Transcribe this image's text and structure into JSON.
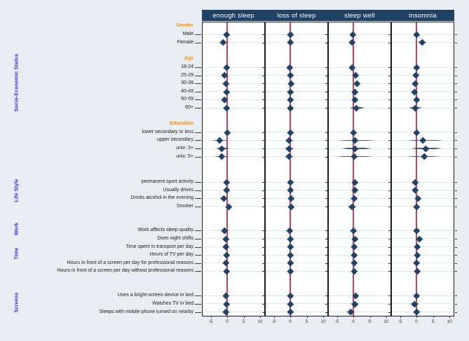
{
  "chart_data": {
    "type": "scatter",
    "subtype": "coefficient-forest-plot",
    "colors": {
      "background": "#e9eef4",
      "panel_bg": "#ffffff",
      "panel_border": "#1b1b1b",
      "header_bg": "#1e4164",
      "header_text": "#ffffff",
      "marker_navy": "#1f4469",
      "zero_line_red": "#c8405c",
      "gridline": "#dce8f2",
      "group_header_orange": "#ff8c00",
      "side_label_blue": "#2626e0",
      "tick_text": "#333333"
    },
    "side_labels": [
      "Socio-Economic Status",
      "Life Style",
      "Work",
      "Time",
      "Screens"
    ],
    "groups": [
      {
        "header": "Gender",
        "items": [
          "Male",
          "Female"
        ]
      },
      {
        "header": "Age",
        "items": [
          "18-24",
          "25-29",
          "30-39",
          "40-49",
          "50-59",
          "60+"
        ]
      },
      {
        "header": "Education",
        "items": [
          "lower secondary or less",
          "upper secondary",
          "univ: 3+",
          "univ: 5+"
        ]
      },
      {
        "header": null,
        "items": [
          "permanent sport activity",
          "Usually drives",
          "Drinks alcohol in the evening",
          "Smoker"
        ]
      },
      {
        "header": null,
        "items": [
          "Work affects sleep quality",
          "Does night shifts",
          "Time spent in transport per day",
          "Hours of TV per day",
          "Hours in front of a screen per day for professional reasons",
          "Hours in front of a screen per day without professional reasons"
        ]
      },
      {
        "header": null,
        "items": [
          "Uses a bright-screen-device in bed",
          "Watches TV in bed",
          "Sleeps with mobile phone turned on nearby"
        ]
      }
    ],
    "x_axis": {
      "ticks": [
        -5,
        0,
        5,
        10
      ],
      "tick_labels": [
        "-5",
        "0",
        "5",
        "10"
      ],
      "range": [
        -7.4,
        11.5
      ],
      "zero_reference_line": 0
    },
    "panels": [
      {
        "title": "enough sleep",
        "values": [
          -0.2,
          -1.3,
          -0.2,
          -0.8,
          -0.4,
          -0.2,
          -0.8,
          -0.2,
          0.1,
          -2.2,
          -1.6,
          -1.6,
          -0.1,
          -0.2,
          -1.0,
          0.5,
          -0.7,
          -0.3,
          -0.3,
          -0.1,
          -0.3,
          -0.1,
          -0.4,
          -0.1,
          -0.4
        ],
        "ci": {
          "1": [
            -2.6,
            0.1
          ],
          "7": [
            -1.3,
            0.9
          ],
          "9": [
            -4.6,
            0.3
          ],
          "10": [
            -3.5,
            0.4
          ],
          "11": [
            -3.8,
            0.6
          ],
          "14": [
            -2.2,
            0.2
          ],
          "16": [
            -2.0,
            0.6
          ],
          "24": [
            -1.6,
            0.8
          ]
        }
      },
      {
        "title": "loss of sleep",
        "values": [
          0.0,
          0.1,
          -0.1,
          0.1,
          0.3,
          0.1,
          0.1,
          0.1,
          0.0,
          -0.3,
          -0.3,
          -0.4,
          0.1,
          0.1,
          0.2,
          0.2,
          -0.1,
          0.1,
          0.1,
          0.1,
          0.1,
          0.1,
          0.0,
          0.1,
          0.1
        ],
        "ci": {
          "7": [
            -0.9,
            1.1
          ],
          "9": [
            -1.7,
            1.1
          ],
          "10": [
            -1.6,
            1.0
          ],
          "11": [
            -1.9,
            1.1
          ]
        }
      },
      {
        "title": "sleep well",
        "values": [
          -0.1,
          -0.3,
          -0.3,
          0.8,
          1.1,
          0.5,
          0.5,
          1.0,
          0.0,
          0.5,
          0.5,
          0.3,
          0.5,
          0.5,
          0.2,
          -0.4,
          0.0,
          0.4,
          0.2,
          0.2,
          0.3,
          0.3,
          0.6,
          0.4,
          -0.8
        ],
        "ci": {
          "7": [
            -1.1,
            3.4
          ],
          "9": [
            -4.7,
            6.6
          ],
          "10": [
            -3.6,
            5.6
          ],
          "11": [
            -5.3,
            5.9
          ],
          "15": [
            -1.7,
            0.9
          ],
          "23": [
            -0.8,
            1.6
          ],
          "24": [
            -2.4,
            0.8
          ]
        }
      },
      {
        "title": "insomnia",
        "values": [
          0.1,
          1.7,
          0.1,
          -0.1,
          -0.3,
          -0.5,
          0.0,
          -0.3,
          0.1,
          1.9,
          2.9,
          2.5,
          -0.3,
          -0.3,
          0.4,
          0.1,
          0.0,
          0.9,
          0.2,
          0.2,
          0.0,
          0.2,
          0.0,
          -0.6,
          0.0
        ],
        "ci": {
          "1": [
            0.3,
            3.1
          ],
          "7": [
            -2.3,
            1.7
          ],
          "9": [
            -3.0,
            8.3
          ],
          "10": [
            -1.8,
            7.6
          ],
          "11": [
            -2.9,
            7.2
          ],
          "17": [
            -0.1,
            1.9
          ],
          "23": [
            -2.0,
            0.8
          ]
        }
      }
    ]
  }
}
